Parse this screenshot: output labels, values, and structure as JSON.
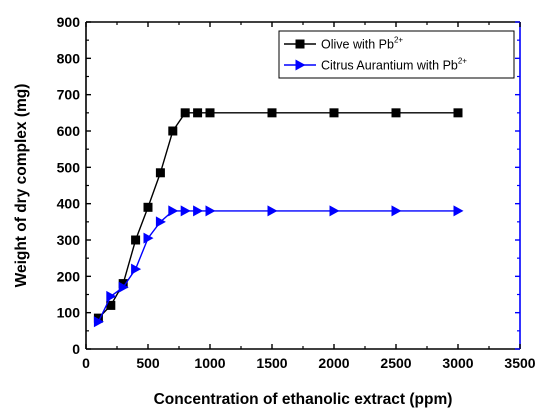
{
  "chart_data": {
    "type": "line",
    "xlabel": "Concentration of ethanolic extract (ppm)",
    "ylabel": "Weight of dry complex (mg)",
    "xlim": [
      0,
      3500
    ],
    "ylim": [
      0,
      900
    ],
    "xticks": [
      0,
      500,
      1000,
      1500,
      2000,
      2500,
      3000,
      3500
    ],
    "yticks": [
      0,
      100,
      200,
      300,
      400,
      500,
      600,
      700,
      800,
      900
    ],
    "grid": false,
    "legend_position": "top-right",
    "series": [
      {
        "name": "Olive with Pb",
        "name_sup": "2+",
        "color": "#000000",
        "marker": "square",
        "x": [
          100,
          200,
          300,
          400,
          500,
          600,
          700,
          800,
          900,
          1000,
          1500,
          2000,
          2500,
          3000
        ],
        "y": [
          85,
          120,
          180,
          300,
          390,
          485,
          600,
          650,
          650,
          650,
          650,
          650,
          650,
          650
        ]
      },
      {
        "name": "Citrus Aurantium with Pb",
        "name_sup": "2+",
        "color": "#0000ff",
        "marker": "triangle-right",
        "x": [
          100,
          200,
          300,
          400,
          500,
          600,
          700,
          800,
          900,
          1000,
          1500,
          2000,
          2500,
          3000
        ],
        "y": [
          75,
          145,
          170,
          220,
          305,
          350,
          380,
          380,
          380,
          380,
          380,
          380,
          380,
          380
        ]
      }
    ]
  }
}
